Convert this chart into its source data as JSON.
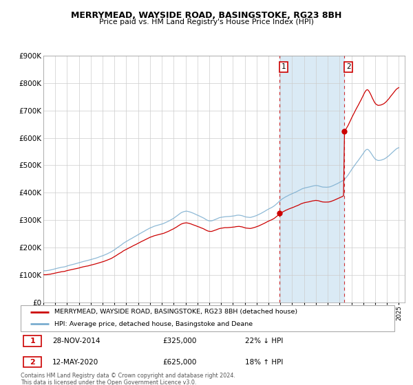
{
  "title": "MERRYMEAD, WAYSIDE ROAD, BASINGSTOKE, RG23 8BH",
  "subtitle": "Price paid vs. HM Land Registry's House Price Index (HPI)",
  "legend_entry1": "MERRYMEAD, WAYSIDE ROAD, BASINGSTOKE, RG23 8BH (detached house)",
  "legend_entry2": "HPI: Average price, detached house, Basingstoke and Deane",
  "annotation1_date": "28-NOV-2014",
  "annotation1_price": "£325,000",
  "annotation1_pct": "22% ↓ HPI",
  "annotation2_date": "12-MAY-2020",
  "annotation2_price": "£625,000",
  "annotation2_pct": "18% ↑ HPI",
  "sale1_year": 2014.92,
  "sale1_value": 325000,
  "sale2_year": 2020.37,
  "sale2_value": 625000,
  "red_line_color": "#cc0000",
  "blue_line_color": "#7aadcf",
  "background_color": "#ffffff",
  "plot_bg_color": "#ffffff",
  "shade_color": "#daeaf5",
  "grid_color": "#cccccc",
  "footer_text": "Contains HM Land Registry data © Crown copyright and database right 2024.\nThis data is licensed under the Open Government Licence v3.0.",
  "ylim": [
    0,
    900000
  ],
  "yticks": [
    0,
    100000,
    200000,
    300000,
    400000,
    500000,
    600000,
    700000,
    800000,
    900000
  ],
  "ytick_labels": [
    "£0",
    "£100K",
    "£200K",
    "£300K",
    "£400K",
    "£500K",
    "£600K",
    "£700K",
    "£800K",
    "£900K"
  ]
}
